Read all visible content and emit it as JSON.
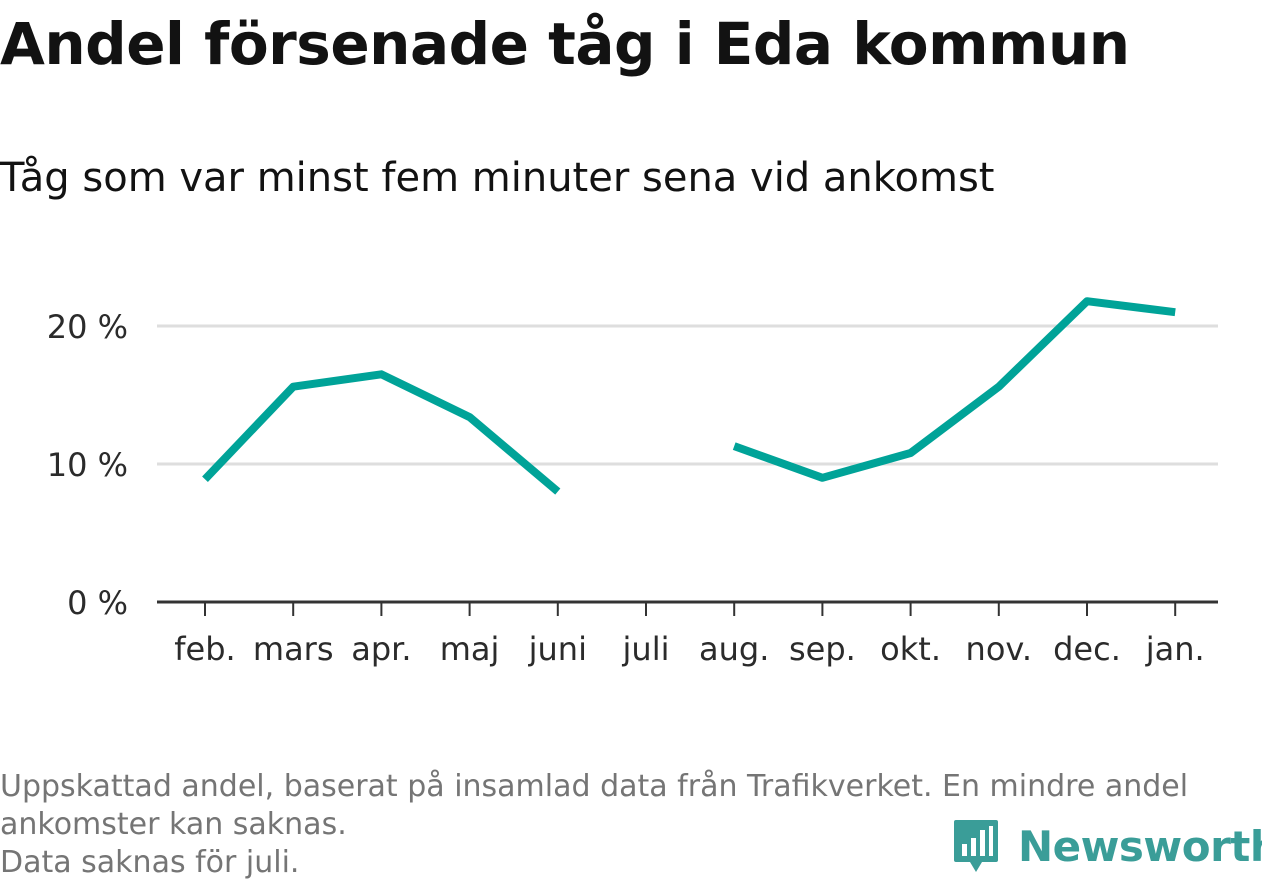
{
  "title": "Andel försenade tåg i Eda kommun",
  "subtitle": "Tåg som var minst fem minuter sena vid ankomst",
  "footer": {
    "line1": "Uppskattad andel, baserat på insamlad data från Trafikverket. En mindre andel ankomster kan saknas.",
    "line2": "Data saknas för juli."
  },
  "logo": {
    "text": "Newsworthy",
    "icon": "newsworthy-bar-chart-icon",
    "color": "#3a9d98"
  },
  "chart_data": {
    "type": "line",
    "title": "Andel försenade tåg i Eda kommun",
    "subtitle": "Tåg som var minst fem minuter sena vid ankomst",
    "categories": [
      "feb.",
      "mars",
      "apr.",
      "maj",
      "juni",
      "juli",
      "aug.",
      "sep.",
      "okt.",
      "nov.",
      "dec.",
      "jan."
    ],
    "series": [
      {
        "values": [
          8.9,
          15.6,
          16.5,
          13.4,
          8.0,
          null,
          11.3,
          9.0,
          10.8,
          15.6,
          21.8,
          21.0
        ]
      }
    ],
    "ylim": [
      0,
      25
    ],
    "yticks": [
      {
        "value": 0,
        "label": "0 %"
      },
      {
        "value": 10,
        "label": "10 %"
      },
      {
        "value": 20,
        "label": "20 %"
      }
    ],
    "grid": true,
    "line_color": "#00a398",
    "grid_color": "#dedede",
    "axis_color": "#333333"
  }
}
